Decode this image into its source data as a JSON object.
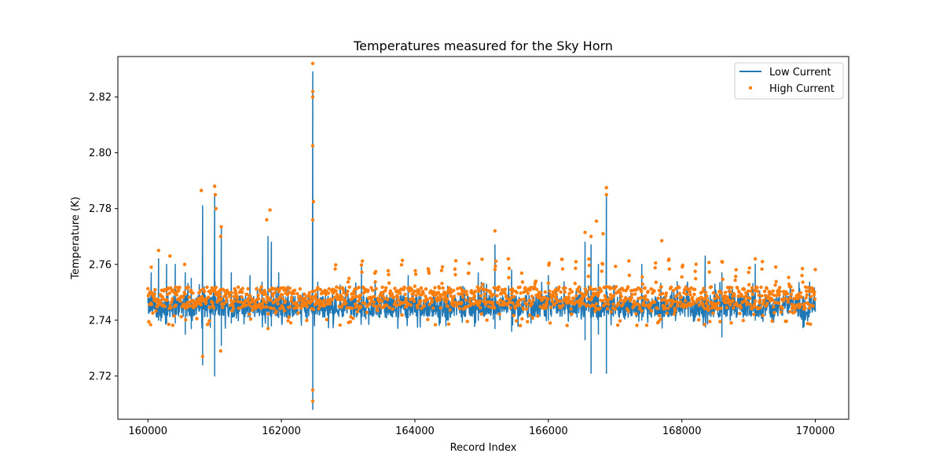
{
  "chart_data": {
    "type": "line+scatter",
    "title": "Temperatures measured for the Sky Horn",
    "xlabel": "Record Index",
    "ylabel": "Temperature (K)",
    "xlim": [
      159550,
      170500
    ],
    "ylim": [
      2.7045,
      2.8345
    ],
    "x_ticks": [
      160000,
      162000,
      164000,
      166000,
      168000,
      170000
    ],
    "x_tick_labels": [
      "160000",
      "162000",
      "164000",
      "166000",
      "168000",
      "170000"
    ],
    "y_ticks": [
      2.72,
      2.74,
      2.76,
      2.78,
      2.8,
      2.82
    ],
    "y_tick_labels": [
      "2.72",
      "2.74",
      "2.76",
      "2.78",
      "2.80",
      "2.82"
    ],
    "grid": false,
    "legend_position": "top-right",
    "series": [
      {
        "name": "Low Current",
        "kind": "line",
        "color": "#1f77b4",
        "x_start": 160000,
        "x_end": 170000,
        "baseline": 2.745,
        "noise_band": [
          2.741,
          2.749
        ],
        "spikes": [
          {
            "x": 160050,
            "low": 2.744,
            "high": 2.757
          },
          {
            "x": 160160,
            "low": 2.74,
            "high": 2.762
          },
          {
            "x": 160280,
            "low": 2.739,
            "high": 2.76
          },
          {
            "x": 160410,
            "low": 2.739,
            "high": 2.76
          },
          {
            "x": 160560,
            "low": 2.735,
            "high": 2.757
          },
          {
            "x": 160650,
            "low": 2.737,
            "high": 2.755
          },
          {
            "x": 160820,
            "low": 2.724,
            "high": 2.781
          },
          {
            "x": 161000,
            "low": 2.72,
            "high": 2.785
          },
          {
            "x": 161100,
            "low": 2.731,
            "high": 2.773
          },
          {
            "x": 161250,
            "low": 2.739,
            "high": 2.757
          },
          {
            "x": 161530,
            "low": 2.74,
            "high": 2.756
          },
          {
            "x": 161800,
            "low": 2.737,
            "high": 2.77
          },
          {
            "x": 161850,
            "low": 2.738,
            "high": 2.768
          },
          {
            "x": 161960,
            "low": 2.741,
            "high": 2.757
          },
          {
            "x": 162470,
            "low": 2.708,
            "high": 2.829
          },
          {
            "x": 163200,
            "low": 2.741,
            "high": 2.76
          },
          {
            "x": 163900,
            "low": 2.741,
            "high": 2.756
          },
          {
            "x": 164950,
            "low": 2.74,
            "high": 2.757
          },
          {
            "x": 165200,
            "low": 2.737,
            "high": 2.767
          },
          {
            "x": 165450,
            "low": 2.736,
            "high": 2.758
          },
          {
            "x": 166000,
            "low": 2.74,
            "high": 2.756
          },
          {
            "x": 166550,
            "low": 2.733,
            "high": 2.768
          },
          {
            "x": 166640,
            "low": 2.721,
            "high": 2.767
          },
          {
            "x": 166750,
            "low": 2.735,
            "high": 2.76
          },
          {
            "x": 166870,
            "low": 2.721,
            "high": 2.785
          },
          {
            "x": 167400,
            "low": 2.74,
            "high": 2.76
          },
          {
            "x": 168350,
            "low": 2.74,
            "high": 2.763
          },
          {
            "x": 168600,
            "low": 2.734,
            "high": 2.757
          },
          {
            "x": 169100,
            "low": 2.74,
            "high": 2.76
          }
        ]
      },
      {
        "name": "High Current",
        "kind": "scatter",
        "color": "#ff7f0e",
        "x_start": 160000,
        "x_end": 170000,
        "baseline": 2.748,
        "noise_band": [
          2.744,
          2.752
        ],
        "periodic_high_band": [
          2.752,
          2.762
        ],
        "outliers": [
          {
            "x": 160050,
            "y": 2.759
          },
          {
            "x": 160160,
            "y": 2.765
          },
          {
            "x": 160330,
            "y": 2.763
          },
          {
            "x": 160550,
            "y": 2.76
          },
          {
            "x": 160800,
            "y": 2.7865
          },
          {
            "x": 160820,
            "y": 2.727
          },
          {
            "x": 161000,
            "y": 2.788
          },
          {
            "x": 161010,
            "y": 2.785
          },
          {
            "x": 161020,
            "y": 2.78
          },
          {
            "x": 161100,
            "y": 2.7735
          },
          {
            "x": 161090,
            "y": 2.77
          },
          {
            "x": 161090,
            "y": 2.729
          },
          {
            "x": 161780,
            "y": 2.776
          },
          {
            "x": 161830,
            "y": 2.7795
          },
          {
            "x": 161800,
            "y": 2.737
          },
          {
            "x": 162470,
            "y": 2.832
          },
          {
            "x": 162470,
            "y": 2.822
          },
          {
            "x": 162470,
            "y": 2.82
          },
          {
            "x": 162470,
            "y": 2.8025
          },
          {
            "x": 162480,
            "y": 2.7825
          },
          {
            "x": 162470,
            "y": 2.776
          },
          {
            "x": 162470,
            "y": 2.711
          },
          {
            "x": 162470,
            "y": 2.715
          },
          {
            "x": 165200,
            "y": 2.772
          },
          {
            "x": 166550,
            "y": 2.7715
          },
          {
            "x": 166640,
            "y": 2.77
          },
          {
            "x": 166720,
            "y": 2.7755
          },
          {
            "x": 166870,
            "y": 2.7875
          },
          {
            "x": 166870,
            "y": 2.785
          },
          {
            "x": 166820,
            "y": 2.771
          },
          {
            "x": 167700,
            "y": 2.7685
          },
          {
            "x": 169100,
            "y": 2.762
          }
        ]
      }
    ]
  }
}
